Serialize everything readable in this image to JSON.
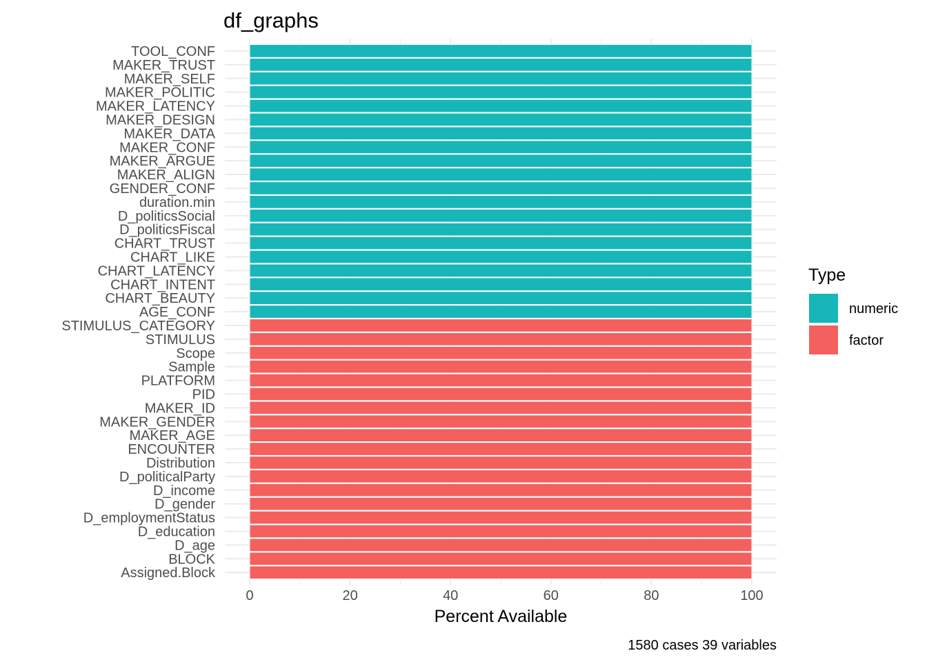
{
  "chart_data": {
    "type": "bar",
    "orientation": "horizontal",
    "title": "df_graphs",
    "xlabel": "Percent Available",
    "ylabel": "",
    "caption": "1580 cases 39 variables",
    "xlim": [
      0,
      100
    ],
    "xticks": [
      "0",
      "20",
      "40",
      "60",
      "80",
      "100"
    ],
    "grid": true,
    "legend": {
      "title": "Type",
      "placement": "right",
      "entries": [
        {
          "label": "numeric",
          "color": "#17b6b9"
        },
        {
          "label": "factor",
          "color": "#f3605e"
        }
      ]
    },
    "categories": [
      "TOOL_CONF",
      "MAKER_TRUST",
      "MAKER_SELF",
      "MAKER_POLITIC",
      "MAKER_LATENCY",
      "MAKER_DESIGN",
      "MAKER_DATA",
      "MAKER_CONF",
      "MAKER_ARGUE",
      "MAKER_ALIGN",
      "GENDER_CONF",
      "duration.min",
      "D_politicsSocial",
      "D_politicsFiscal",
      "CHART_TRUST",
      "CHART_LIKE",
      "CHART_LATENCY",
      "CHART_INTENT",
      "CHART_BEAUTY",
      "AGE_CONF",
      "STIMULUS_CATEGORY",
      "STIMULUS",
      "Scope",
      "Sample",
      "PLATFORM",
      "PID",
      "MAKER_ID",
      "MAKER_GENDER",
      "MAKER_AGE",
      "ENCOUNTER",
      "Distribution",
      "D_politicalParty",
      "D_income",
      "D_gender",
      "D_employmentStatus",
      "D_education",
      "D_age",
      "BLOCK",
      "Assigned.Block"
    ],
    "types": [
      "numeric",
      "numeric",
      "numeric",
      "numeric",
      "numeric",
      "numeric",
      "numeric",
      "numeric",
      "numeric",
      "numeric",
      "numeric",
      "numeric",
      "numeric",
      "numeric",
      "numeric",
      "numeric",
      "numeric",
      "numeric",
      "numeric",
      "numeric",
      "factor",
      "factor",
      "factor",
      "factor",
      "factor",
      "factor",
      "factor",
      "factor",
      "factor",
      "factor",
      "factor",
      "factor",
      "factor",
      "factor",
      "factor",
      "factor",
      "factor",
      "factor",
      "factor"
    ],
    "values": [
      100,
      100,
      100,
      100,
      100,
      100,
      100,
      100,
      100,
      100,
      100,
      100,
      100,
      100,
      100,
      100,
      100,
      100,
      100,
      100,
      100,
      100,
      100,
      100,
      100,
      100,
      100,
      100,
      100,
      100,
      100,
      100,
      100,
      100,
      100,
      100,
      100,
      100,
      100
    ]
  }
}
